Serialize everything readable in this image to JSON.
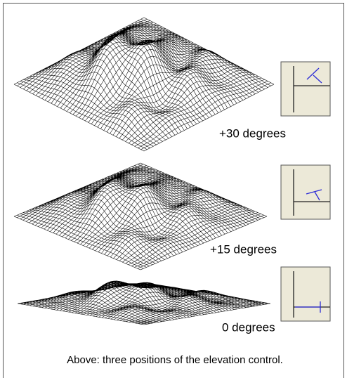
{
  "figures": [
    {
      "label": "+30 degrees"
    },
    {
      "label": "+15 degrees"
    },
    {
      "label": "0 degrees"
    }
  ],
  "caption": "Above: three positions of the elevation control."
}
